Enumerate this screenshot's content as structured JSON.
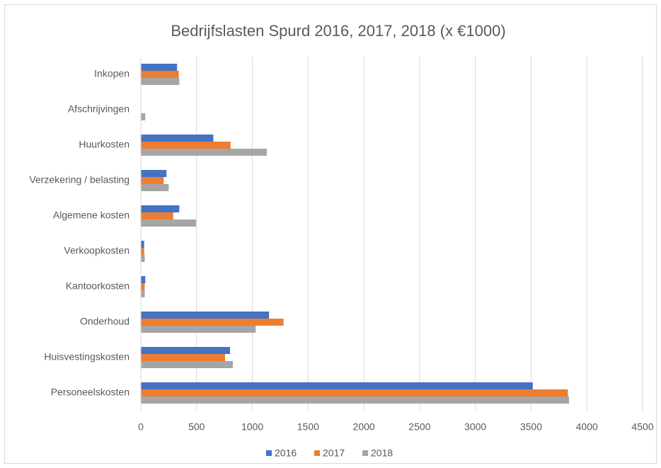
{
  "chart_data": {
    "type": "hbar",
    "title": "Bedrijfslasten Spurd 2016, 2017, 2018 (x €1000)",
    "categories": [
      "Inkopen",
      "Afschrijvingen",
      "Huurkosten",
      "Verzekering / belasting",
      "Algemene kosten",
      "Verkoopkosten",
      "Kantoorkosten",
      "Onderhoud",
      "Huisvestingskosten",
      "Personeelskosten"
    ],
    "series": [
      {
        "name": "2016",
        "color": "#4472c4",
        "values": [
          325,
          0,
          650,
          230,
          345,
          30,
          40,
          1150,
          800,
          3515
        ]
      },
      {
        "name": "2017",
        "color": "#ed7d31",
        "values": [
          340,
          0,
          805,
          205,
          290,
          30,
          35,
          1280,
          755,
          3830
        ]
      },
      {
        "name": "2018",
        "color": "#a5a5a5",
        "values": [
          345,
          40,
          1130,
          250,
          495,
          35,
          35,
          1030,
          825,
          3840
        ]
      }
    ],
    "xlim": [
      0,
      4500
    ],
    "xticks": [
      0,
      500,
      1000,
      1500,
      2000,
      2500,
      3000,
      3500,
      4000,
      4500
    ],
    "grid": true,
    "legend": "bottom"
  }
}
